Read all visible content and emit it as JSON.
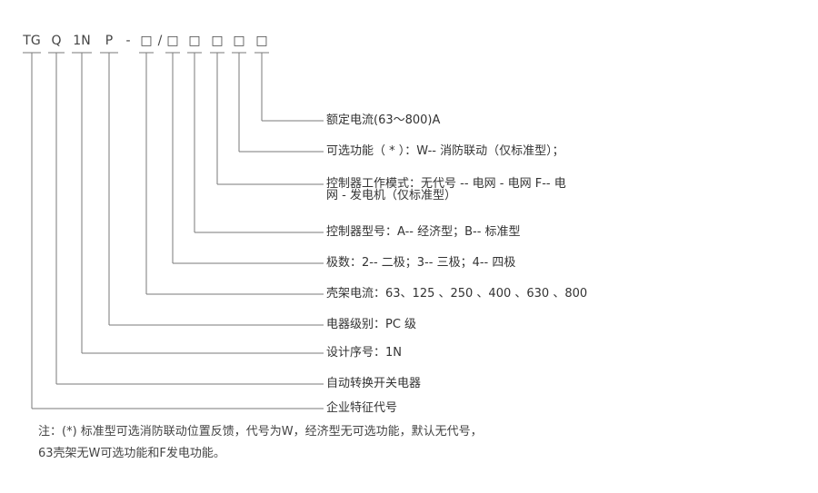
{
  "codes": [
    "TG",
    "Q",
    "1N",
    "P",
    "-",
    "□",
    "/",
    "□",
    "□",
    "□",
    "□",
    "□"
  ],
  "labels": [
    {
      "text": "额定电流(63～800)A"
    },
    {
      "text": "可选功能（ * ）：W-- 消防联动（仅标准型）；"
    },
    {
      "text": "控制器工作模式：无代号 -- 电网 - 电网 F-- 电",
      "text2": "网 - 发电机（仅标准型）"
    },
    {
      "text": "控制器型号：A-- 经济型；B-- 标准型"
    },
    {
      "text": "极数：2-- 二极；3-- 三极；4-- 四极"
    },
    {
      "text": "壳架电流：63、125 、250 、400 、630 、800"
    },
    {
      "text": "电器级别：PC 级"
    },
    {
      "text": "设计序号：1N"
    },
    {
      "text": "自动转换开关电器"
    },
    {
      "text": "企业特征代号"
    }
  ],
  "note": {
    "line1": "注：(*) 标准型可选消防联动位置反馈，代号为W，经济型无可选功能，默认无代号，",
    "line2": "63壳架无W可选功能和F发电功能。"
  },
  "colors": {
    "line": "#7a7a7a",
    "text": "#333333"
  }
}
